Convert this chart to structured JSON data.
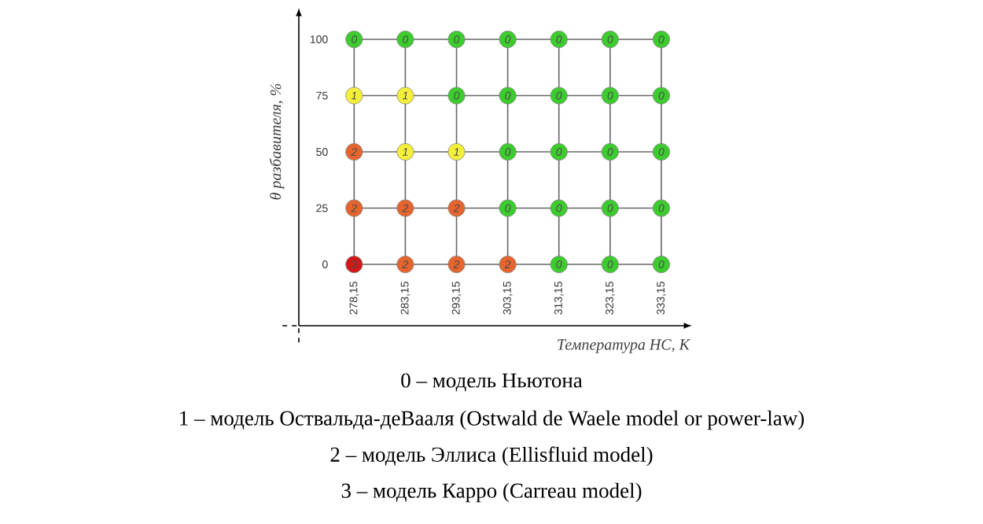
{
  "chart_data": {
    "type": "heatmap",
    "xlabel": "Температура НС, К",
    "ylabel": "θ разбавителя, %",
    "categories": [
      "278,15",
      "283,15",
      "293,15",
      "303,15",
      "313,15",
      "323,15",
      "333,15"
    ],
    "y_categories": [
      "100",
      "75",
      "50",
      "25",
      "0"
    ],
    "cells": [
      [
        0,
        0,
        0,
        0,
        0,
        0,
        0
      ],
      [
        1,
        1,
        0,
        0,
        0,
        0,
        0
      ],
      [
        2,
        1,
        1,
        0,
        0,
        0,
        0
      ],
      [
        2,
        2,
        2,
        0,
        0,
        0,
        0
      ],
      [
        3,
        2,
        2,
        2,
        0,
        0,
        0
      ]
    ],
    "colors": [
      "#3ccc2e",
      "#f4f03a",
      "#e6642e",
      "#d01818"
    ],
    "data_labels": true,
    "grid": true,
    "annotations": [
      "0 – модель Ньютона",
      "1 – модель Оствальда-деВааля (Ostwald de Waele model or power-law)",
      "2 – модель Эллиса (Ellisfluid model)",
      "3 – модель Карро (Carreau model)"
    ]
  }
}
